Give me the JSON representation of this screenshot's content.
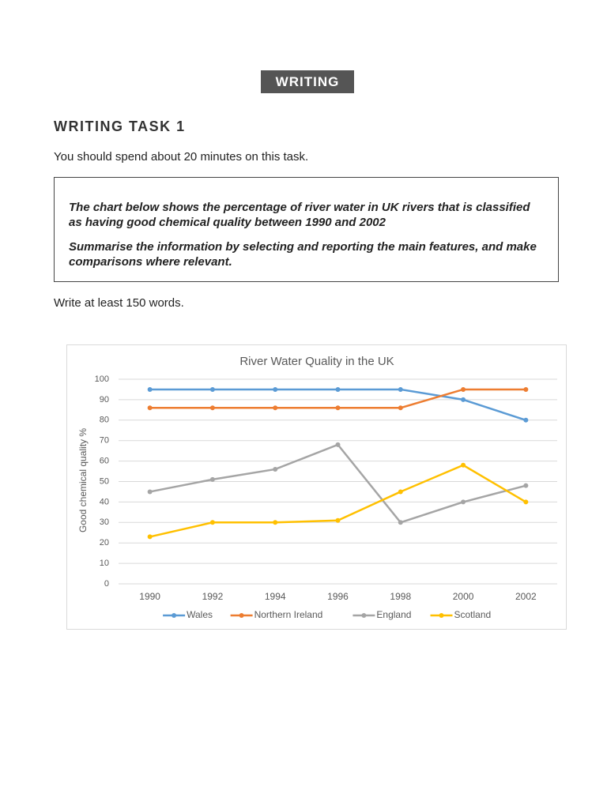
{
  "badge": "WRITING",
  "task_title": "WRITING TASK 1",
  "instruction": "You should spend about 20 minutes on this task.",
  "prompt": [
    "The chart below shows the percentage of river water in UK rivers that is classified as having good chemical quality between 1990 and 2002",
    "Summarise the information by selecting and reporting the main features, and make comparisons where relevant."
  ],
  "word_count": "Write at least 150 words.",
  "chart_data": {
    "type": "line",
    "title": "River Water Quality in the UK",
    "y_label": "Good chemical quality %",
    "categories": [
      "1990",
      "1992",
      "1994",
      "1996",
      "1998",
      "2000",
      "2002"
    ],
    "series": [
      {
        "name": "Wales",
        "color": "#5b9bd5",
        "values": [
          95,
          95,
          95,
          95,
          95,
          90,
          80
        ]
      },
      {
        "name": "Northern Ireland",
        "color": "#ed7d31",
        "values": [
          86,
          86,
          86,
          86,
          86,
          95,
          95
        ]
      },
      {
        "name": "England",
        "color": "#a5a5a5",
        "values": [
          45,
          51,
          56,
          68,
          30,
          40,
          48
        ]
      },
      {
        "name": "Scotland",
        "color": "#ffc000",
        "values": [
          23,
          30,
          30,
          31,
          45,
          58,
          40
        ]
      }
    ],
    "ylim": [
      0,
      100
    ],
    "yticks": [
      0,
      10,
      20,
      30,
      40,
      50,
      60,
      70,
      80,
      90,
      100
    ],
    "grid": true,
    "legend": "bottom"
  }
}
